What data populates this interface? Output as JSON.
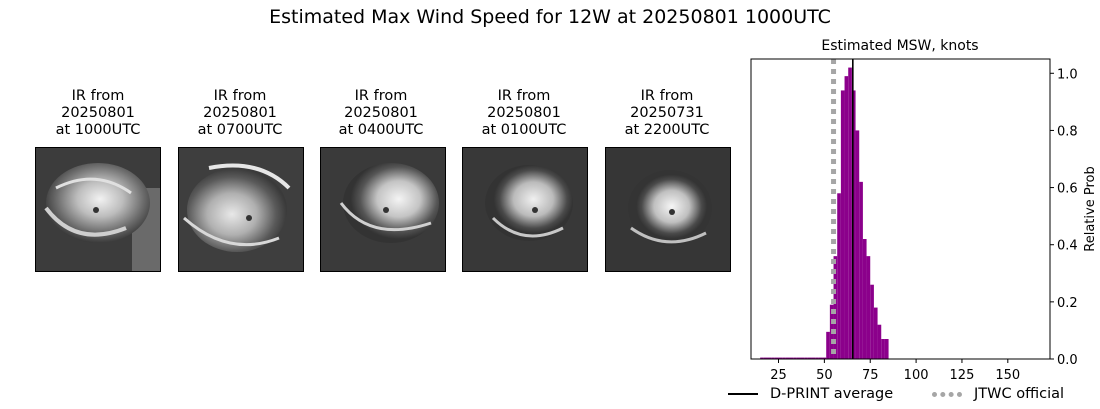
{
  "title": "Estimated Max Wind Speed for 12W at 20250801 1000UTC",
  "ir_panels": [
    {
      "line1": "IR from",
      "line2": "20250801",
      "line3": "at 1000UTC"
    },
    {
      "line1": "IR from",
      "line2": "20250801",
      "line3": "at 0700UTC"
    },
    {
      "line1": "IR from",
      "line2": "20250801",
      "line3": "at 0400UTC"
    },
    {
      "line1": "IR from",
      "line2": "20250801",
      "line3": "at 0100UTC"
    },
    {
      "line1": "IR from",
      "line2": "20250731",
      "line3": "at 2200UTC"
    }
  ],
  "chart_data": {
    "type": "bar",
    "title": "Estimated MSW, knots",
    "xlabel": "",
    "ylabel": "Relative Prob",
    "xlim": [
      10,
      173
    ],
    "ylim": [
      0,
      1.05
    ],
    "xticks": [
      25,
      50,
      75,
      100,
      125,
      150
    ],
    "yticks": [
      0.0,
      0.2,
      0.4,
      0.6,
      0.8,
      1.0
    ],
    "ytick_labels": [
      "0.0",
      "0.2",
      "0.4",
      "0.6",
      "0.8",
      "1.0"
    ],
    "bin_width": 2,
    "bin_starts": [
      15,
      17,
      19,
      21,
      23,
      25,
      27,
      29,
      31,
      33,
      35,
      37,
      39,
      41,
      43,
      45,
      47,
      49,
      51,
      53,
      55,
      57,
      59,
      61,
      63,
      65,
      67,
      69,
      71,
      73,
      75,
      77,
      79,
      81,
      83,
      85,
      87,
      89,
      91,
      93,
      95,
      97,
      99,
      101,
      103,
      105,
      107,
      109,
      111,
      113,
      115,
      117,
      119,
      121,
      123,
      125,
      127,
      129,
      131,
      133,
      135,
      137,
      139,
      141,
      143,
      145,
      147,
      149,
      151,
      153,
      155,
      157,
      159,
      161,
      163,
      165,
      167
    ],
    "values": [
      0.005,
      0.005,
      0.005,
      0.005,
      0.005,
      0.005,
      0.005,
      0.005,
      0.005,
      0.005,
      0.005,
      0.005,
      0.005,
      0.005,
      0.005,
      0.005,
      0.005,
      0.005,
      0.095,
      0.19,
      0.36,
      0.58,
      0.94,
      0.99,
      1.02,
      0.94,
      0.8,
      0.62,
      0.42,
      0.36,
      0.26,
      0.18,
      0.12,
      0.07,
      0.07,
      0.0,
      0.0,
      0.0,
      0.0,
      0.0,
      0.0,
      0.0,
      0.0,
      0.0,
      0.0,
      0.0,
      0.0,
      0.0,
      0.0,
      0.0,
      0.0,
      0.0,
      0.0,
      0.0,
      0.0,
      0.0,
      0.0,
      0.0,
      0.0,
      0.0,
      0.0,
      0.0,
      0.0,
      0.0,
      0.0,
      0.0,
      0.0,
      0.0,
      0.0,
      0.0,
      0.0,
      0.0,
      0.0,
      0.0,
      0.0,
      0.0,
      0.0
    ],
    "bar_color": "#8b008b",
    "dprint_average": 65.5,
    "jtwc_official": 55,
    "dprint_color": "#000000",
    "jtwc_color": "#a6a6a6",
    "legend": [
      "D-PRINT average",
      "JTWC official"
    ],
    "legend_placement": "bottom"
  }
}
